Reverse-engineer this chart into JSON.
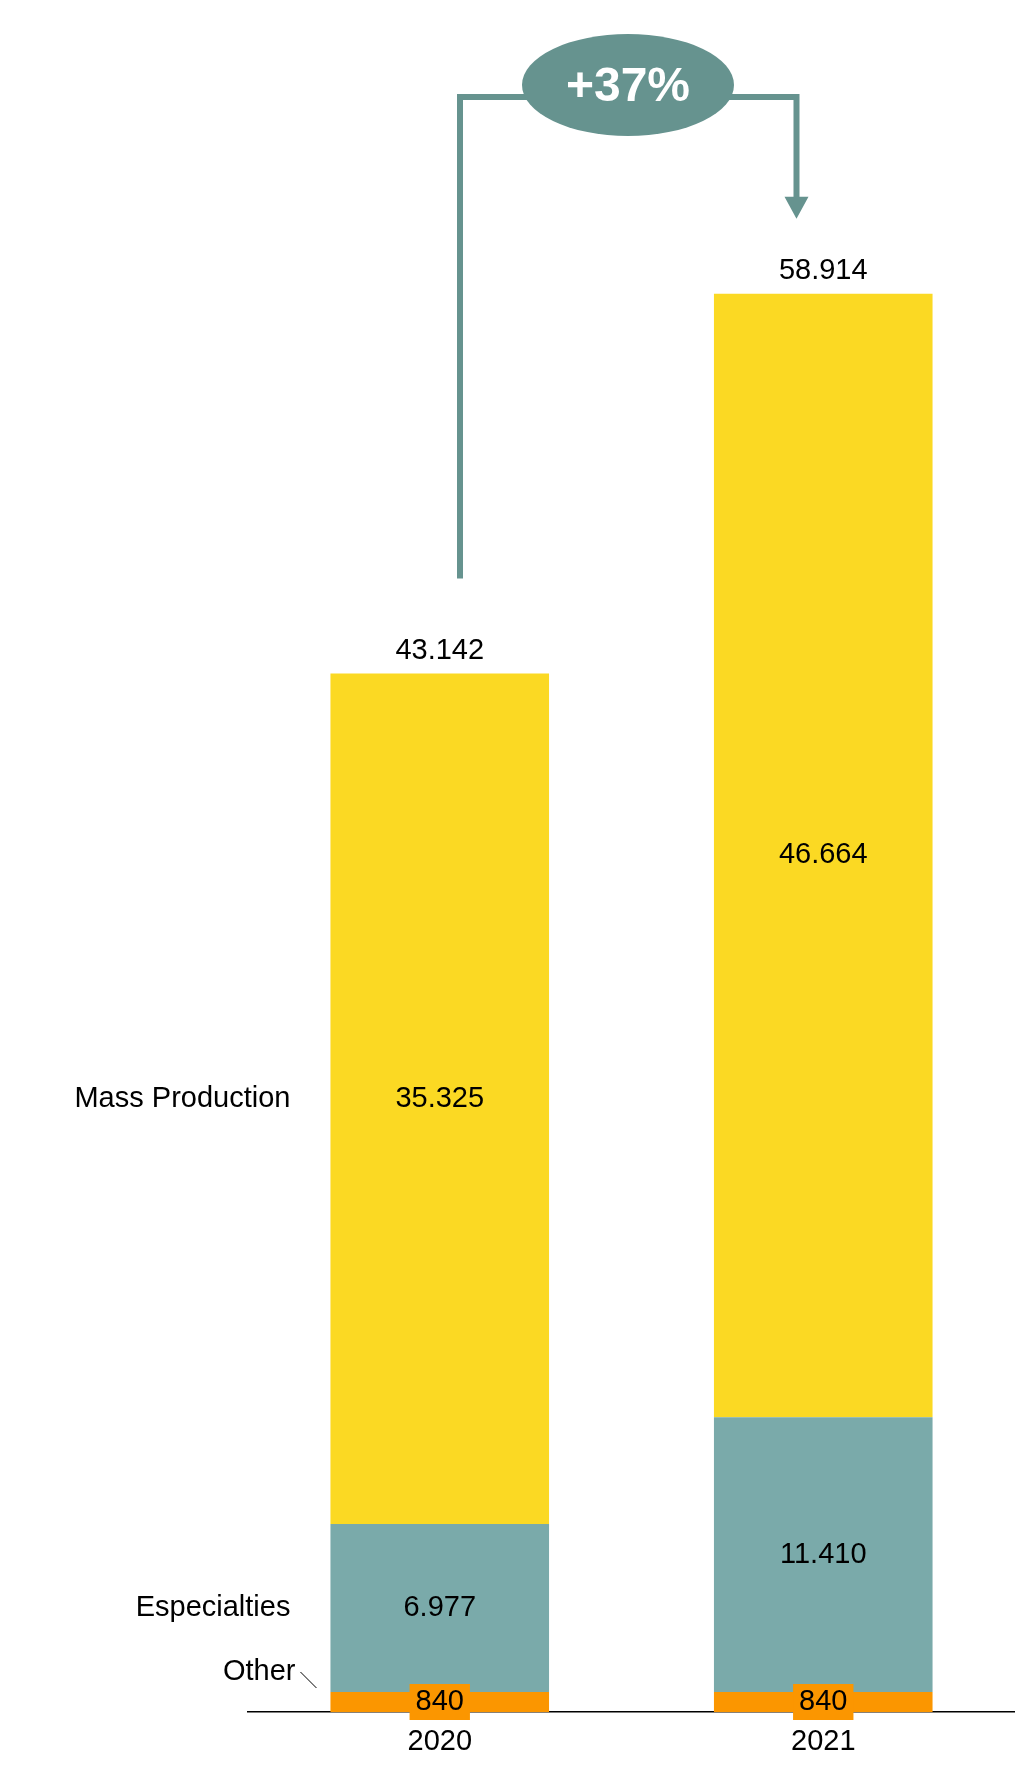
{
  "chart_data": {
    "type": "bar",
    "stacked": true,
    "categories": [
      "2020",
      "2021"
    ],
    "series": [
      {
        "name": "Other",
        "color": "#fb9600",
        "values": [
          840,
          840
        ],
        "value_labels": [
          "840",
          "840"
        ]
      },
      {
        "name": "Especialties",
        "color": "#7aaaaa",
        "values": [
          6977,
          11410
        ],
        "value_labels": [
          "6.977",
          "11.410"
        ]
      },
      {
        "name": "Mass Production",
        "color": "#fbd923",
        "values": [
          35325,
          46664
        ],
        "value_labels": [
          "35.325",
          "46.664"
        ]
      }
    ],
    "totals": [
      "43.142",
      "58.914"
    ],
    "tick_labels": "x",
    "grid": false,
    "legend": false,
    "annotations": [
      "+37%"
    ]
  }
}
